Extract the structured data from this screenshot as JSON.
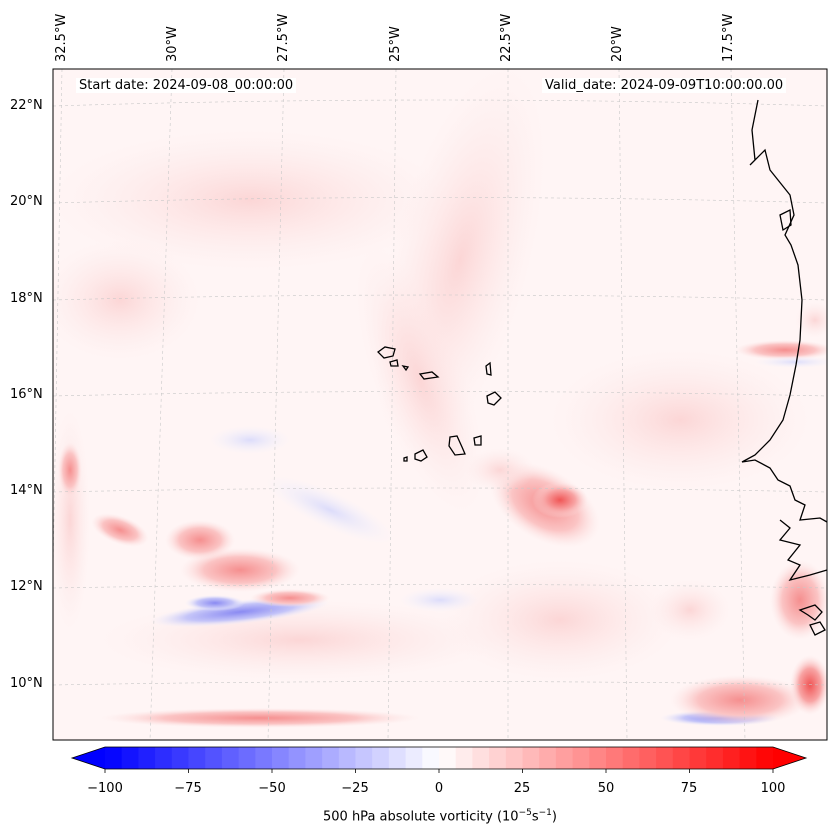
{
  "map": {
    "start_date": "Start date: 2024-09-08_00:00:00",
    "valid_date": "Valid_date: 2024-09-09T10:00:00.00",
    "lon_labels": [
      "32.5°W",
      "30°W",
      "27.5°W",
      "25°W",
      "22.5°W",
      "20°W",
      "17.5°W"
    ],
    "lat_labels": [
      "22°N",
      "20°N",
      "18°N",
      "16°N",
      "14°N",
      "12°N",
      "10°N"
    ],
    "region": "Cape Verde Islands and West African coast"
  },
  "colorbar": {
    "ticks": [
      "−100",
      "−75",
      "−50",
      "−25",
      "0",
      "25",
      "50",
      "75",
      "100"
    ],
    "label_prefix": "500 hPa absolute vorticity (10",
    "label_exp1": "−5",
    "label_mid": "s",
    "label_exp2": "−1",
    "label_suffix": ")",
    "min_color": "#0000ff",
    "mid_color": "#ffffff",
    "max_color": "#ff0000"
  }
}
